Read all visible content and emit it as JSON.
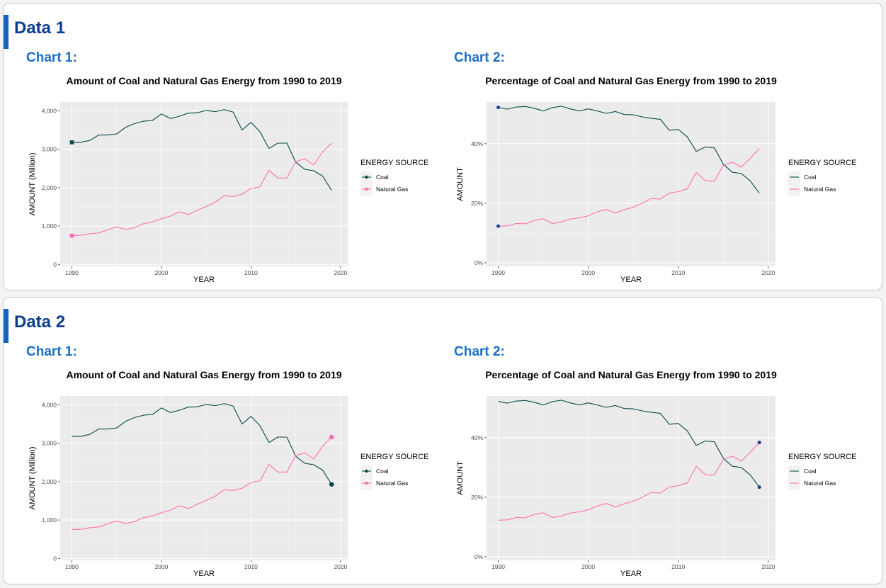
{
  "colors": {
    "accent": "#1565c0",
    "coal": "#0b4a4a",
    "gas": "#ff6eb4",
    "marker_blue": "#1f3d99"
  },
  "panels": [
    {
      "title": "Data 1",
      "charts": [
        {
          "label": "Chart 1:",
          "chart_data": {
            "type": "line",
            "title": "Amount of Coal and Natural Gas Energy from 1990 to 2019",
            "xlabel": "YEAR",
            "ylabel": "AMOUNT (Million)",
            "xlim": [
              1988.7,
              2020.8
            ],
            "ylim": [
              -50,
              4230
            ],
            "xticks": [
              1990,
              2000,
              2010,
              2020
            ],
            "yticks": [
              0,
              1000,
              2000,
              3000,
              4000
            ],
            "ytick_labels": [
              "0",
              "1,000",
              "2,000",
              "3,000",
              "4,000"
            ],
            "x": [
              1990,
              1991,
              1992,
              1993,
              1994,
              1995,
              1996,
              1997,
              1998,
              1999,
              2000,
              2001,
              2002,
              2003,
              2004,
              2005,
              2006,
              2007,
              2008,
              2009,
              2010,
              2011,
              2012,
              2013,
              2014,
              2015,
              2016,
              2017,
              2018,
              2019
            ],
            "series": [
              {
                "name": "Coal",
                "color": "#0b4a4a",
                "values": [
                  3180,
                  3180,
                  3230,
                  3370,
                  3370,
                  3400,
                  3570,
                  3670,
                  3730,
                  3750,
                  3920,
                  3800,
                  3860,
                  3940,
                  3950,
                  4010,
                  3980,
                  4030,
                  3970,
                  3500,
                  3700,
                  3460,
                  3020,
                  3160,
                  3160,
                  2660,
                  2480,
                  2440,
                  2300,
                  1930
                ]
              },
              {
                "name": "Natural Gas",
                "color": "#ff6eb4",
                "values": [
                  750,
                  760,
                  800,
                  820,
                  900,
                  980,
                  910,
                  960,
                  1060,
                  1110,
                  1190,
                  1260,
                  1370,
                  1300,
                  1410,
                  1510,
                  1620,
                  1790,
                  1770,
                  1830,
                  1980,
                  2020,
                  2450,
                  2250,
                  2250,
                  2680,
                  2750,
                  2590,
                  2930,
                  3160
                ]
              }
            ],
            "highlight_index": 0,
            "marker_shape": "square",
            "legend": {
              "title": "ENERGY SOURCE",
              "placement": "right",
              "style": "point"
            }
          }
        },
        {
          "label": "Chart 2:",
          "chart_data": {
            "type": "line",
            "title": "Percentage of Coal and Natural Gas Energy from 1990 to 2019",
            "xlabel": "YEAR",
            "ylabel": "AMOUNT",
            "xlim": [
              1988.7,
              2020.8
            ],
            "ylim": [
              -1.2,
              54
            ],
            "xticks": [
              1990,
              2000,
              2010,
              2020
            ],
            "yticks": [
              0,
              20,
              40
            ],
            "ytick_labels": [
              "0%",
              "20%",
              "40%"
            ],
            "x": [
              1990,
              1991,
              1992,
              1993,
              1994,
              1995,
              1996,
              1997,
              1998,
              1999,
              2000,
              2001,
              2002,
              2003,
              2004,
              2005,
              2006,
              2007,
              2008,
              2009,
              2010,
              2011,
              2012,
              2013,
              2014,
              2015,
              2016,
              2017,
              2018,
              2019
            ],
            "series": [
              {
                "name": "Coal",
                "color": "#0b4a4a",
                "values": [
                  52.2,
                  51.6,
                  52.3,
                  52.5,
                  51.9,
                  51.0,
                  52.1,
                  52.6,
                  51.7,
                  51.0,
                  51.7,
                  51.0,
                  50.2,
                  50.8,
                  49.8,
                  49.7,
                  49.0,
                  48.5,
                  48.2,
                  44.5,
                  44.8,
                  42.3,
                  37.4,
                  38.9,
                  38.6,
                  33.1,
                  30.4,
                  30.0,
                  27.5,
                  23.4
                ]
              },
              {
                "name": "Natural Gas",
                "color": "#ff6eb4",
                "values": [
                  12.3,
                  12.4,
                  13.2,
                  13.1,
                  14.2,
                  14.8,
                  13.2,
                  13.7,
                  14.7,
                  15.1,
                  15.8,
                  17.1,
                  17.9,
                  16.7,
                  17.8,
                  18.7,
                  20.0,
                  21.6,
                  21.4,
                  23.4,
                  23.9,
                  24.8,
                  30.4,
                  27.6,
                  27.5,
                  32.7,
                  33.8,
                  32.1,
                  35.1,
                  38.4
                ]
              }
            ],
            "highlight_index": 0,
            "marker_shape": "circle",
            "legend": {
              "title": "ENERGY SOURCE",
              "placement": "right",
              "style": "line"
            }
          }
        }
      ]
    },
    {
      "title": "Data 2",
      "charts": [
        {
          "label": "Chart 1:",
          "chart_data": {
            "type": "line",
            "title": "Amount of Coal and Natural Gas Energy from 1990 to 2019",
            "xlabel": "YEAR",
            "ylabel": "AMOUNT (Million)",
            "xlim": [
              1988.7,
              2020.8
            ],
            "ylim": [
              -50,
              4230
            ],
            "xticks": [
              1990,
              2000,
              2010,
              2020
            ],
            "yticks": [
              0,
              1000,
              2000,
              3000,
              4000
            ],
            "ytick_labels": [
              "0",
              "1,000",
              "2,000",
              "3,000",
              "4,000"
            ],
            "x": [
              1990,
              1991,
              1992,
              1993,
              1994,
              1995,
              1996,
              1997,
              1998,
              1999,
              2000,
              2001,
              2002,
              2003,
              2004,
              2005,
              2006,
              2007,
              2008,
              2009,
              2010,
              2011,
              2012,
              2013,
              2014,
              2015,
              2016,
              2017,
              2018,
              2019
            ],
            "series": [
              {
                "name": "Coal",
                "color": "#0b4a4a",
                "values": [
                  3180,
                  3180,
                  3230,
                  3370,
                  3370,
                  3400,
                  3570,
                  3670,
                  3730,
                  3750,
                  3920,
                  3800,
                  3860,
                  3940,
                  3950,
                  4010,
                  3980,
                  4030,
                  3970,
                  3500,
                  3700,
                  3460,
                  3020,
                  3160,
                  3160,
                  2660,
                  2480,
                  2440,
                  2300,
                  1930
                ]
              },
              {
                "name": "Natural Gas",
                "color": "#ff6eb4",
                "values": [
                  750,
                  760,
                  800,
                  820,
                  900,
                  980,
                  910,
                  960,
                  1060,
                  1110,
                  1190,
                  1260,
                  1370,
                  1300,
                  1410,
                  1510,
                  1620,
                  1790,
                  1770,
                  1830,
                  1980,
                  2020,
                  2450,
                  2250,
                  2250,
                  2680,
                  2750,
                  2590,
                  2930,
                  3160
                ]
              }
            ],
            "highlight_index": 29,
            "marker_shape": "circle",
            "legend": {
              "title": "ENERGY SOURCE",
              "placement": "right",
              "style": "point"
            }
          }
        },
        {
          "label": "Chart 2:",
          "chart_data": {
            "type": "line",
            "title": "Percentage of Coal and Natural Gas Energy from 1990 to 2019",
            "xlabel": "YEAR",
            "ylabel": "AMOUNT",
            "xlim": [
              1988.7,
              2020.8
            ],
            "ylim": [
              -1.2,
              54
            ],
            "xticks": [
              1990,
              2000,
              2010,
              2020
            ],
            "yticks": [
              0,
              20,
              40
            ],
            "ytick_labels": [
              "0%",
              "20%",
              "40%"
            ],
            "x": [
              1990,
              1991,
              1992,
              1993,
              1994,
              1995,
              1996,
              1997,
              1998,
              1999,
              2000,
              2001,
              2002,
              2003,
              2004,
              2005,
              2006,
              2007,
              2008,
              2009,
              2010,
              2011,
              2012,
              2013,
              2014,
              2015,
              2016,
              2017,
              2018,
              2019
            ],
            "series": [
              {
                "name": "Coal",
                "color": "#0b4a4a",
                "values": [
                  52.2,
                  51.6,
                  52.3,
                  52.5,
                  51.9,
                  51.0,
                  52.1,
                  52.6,
                  51.7,
                  51.0,
                  51.7,
                  51.0,
                  50.2,
                  50.8,
                  49.8,
                  49.7,
                  49.0,
                  48.5,
                  48.2,
                  44.5,
                  44.8,
                  42.3,
                  37.4,
                  38.9,
                  38.6,
                  33.1,
                  30.4,
                  30.0,
                  27.5,
                  23.4
                ]
              },
              {
                "name": "Natural Gas",
                "color": "#ff6eb4",
                "values": [
                  12.3,
                  12.4,
                  13.2,
                  13.1,
                  14.2,
                  14.8,
                  13.2,
                  13.7,
                  14.7,
                  15.1,
                  15.8,
                  17.1,
                  17.9,
                  16.7,
                  17.8,
                  18.7,
                  20.0,
                  21.6,
                  21.4,
                  23.4,
                  23.9,
                  24.8,
                  30.4,
                  27.6,
                  27.5,
                  32.7,
                  33.8,
                  32.1,
                  35.1,
                  38.4
                ]
              }
            ],
            "highlight_index": 29,
            "marker_shape": "circle",
            "legend": {
              "title": "ENERGY SOURCE",
              "placement": "right",
              "style": "line"
            }
          }
        }
      ]
    }
  ]
}
